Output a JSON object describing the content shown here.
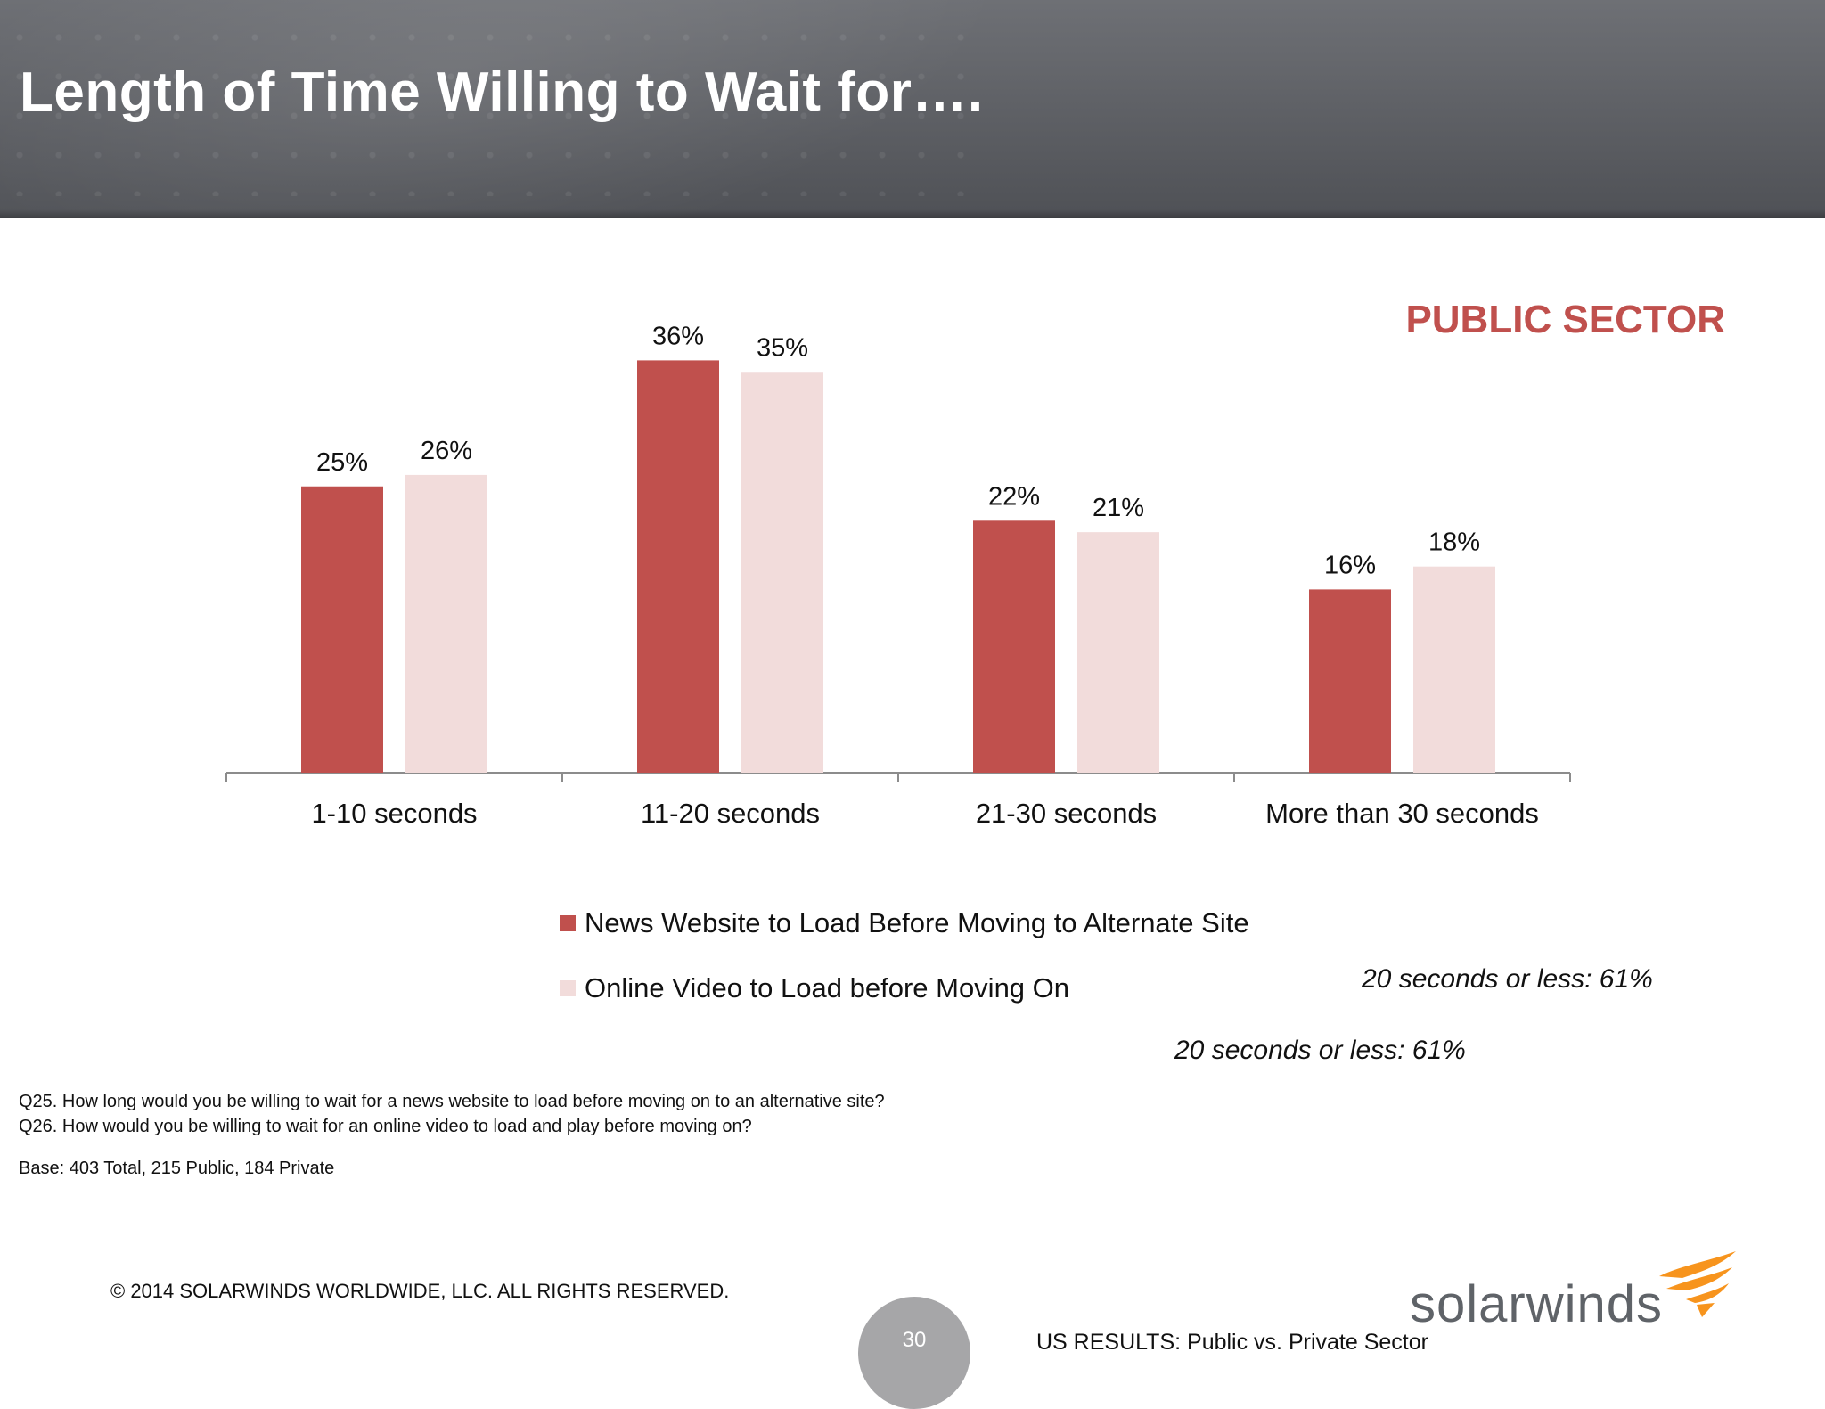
{
  "slide": {
    "title": "Length of Time Willing to Wait for….",
    "sector_label": "PUBLIC SECTOR",
    "notes": [
      "20 seconds or less:  61%",
      "20 seconds or less:  61%"
    ],
    "questions": [
      "Q25. How long would you be willing to wait for a news website to load before moving on to an alternative site?",
      "Q26. How would you be willing to wait for an online video to load and play before moving on?"
    ],
    "base": "Base:  403  Total, 215 Public, 184 Private",
    "copyright": "© 2014 SOLARWINDS WORLDWIDE, LLC.  ALL RIGHTS RESERVED.",
    "page_number": "30",
    "footer_right": "US RESULTS:  Public vs. Private Sector",
    "logo_text": "solarwinds",
    "logo_icon": "solarwinds-flame-icon"
  },
  "chart_data": {
    "type": "bar",
    "title": "",
    "xlabel": "",
    "ylabel": "",
    "ylim": [
      0,
      40
    ],
    "grid": false,
    "legend_position": "bottom",
    "categories": [
      "1-10 seconds",
      "11-20 seconds",
      "21-30 seconds",
      "More than 30 seconds"
    ],
    "series": [
      {
        "name": "News Website to Load Before Moving to Alternate Site",
        "values": [
          25,
          36,
          22,
          16
        ],
        "labels": [
          "25%",
          "36%",
          "22%",
          "16%"
        ],
        "color": "#c0504d"
      },
      {
        "name": "Online Video to Load before Moving On",
        "values": [
          26,
          35,
          21,
          18
        ],
        "labels": [
          "26%",
          "35%",
          "21%",
          "18%"
        ],
        "color": "#f2dcdb"
      }
    ]
  }
}
